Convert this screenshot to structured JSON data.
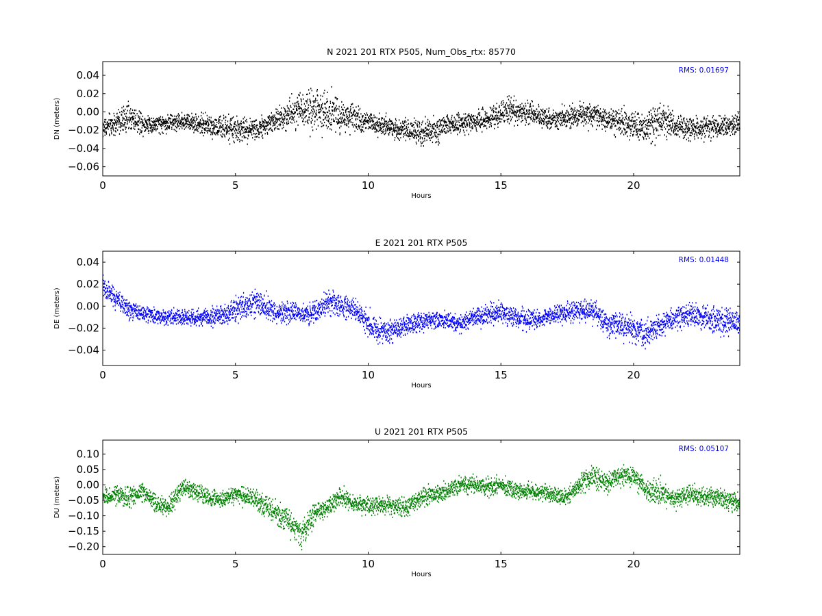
{
  "chart_data": [
    {
      "type": "scatter",
      "title": "N 2021 201 RTX  P505, Num_Obs_rtx: 85770",
      "xlabel": "Hours",
      "ylabel": "DN (meters)",
      "xlim": [
        0,
        24
      ],
      "ylim": [
        -0.07,
        0.055
      ],
      "x_ticks": [
        0,
        5,
        10,
        15,
        20
      ],
      "y_ticks": [
        -0.06,
        -0.04,
        -0.02,
        0.0,
        0.02,
        0.04
      ],
      "y_tick_labels": [
        "−0.06",
        "−0.04",
        "−0.02",
        "0.00",
        "0.02",
        "0.04"
      ],
      "color": "#000000",
      "annotation": "RMS:  0.01697",
      "annotation_color": "#0000ff",
      "grid": false,
      "series": [
        {
          "x": [
            0,
            0.5,
            1,
            1.5,
            2,
            2.5,
            3,
            3.5,
            4,
            4.5,
            5,
            5.5,
            6,
            6.5,
            7,
            7.5,
            8,
            8.5,
            9,
            9.5,
            10,
            10.5,
            11,
            11.5,
            12,
            12.5,
            13,
            13.5,
            14,
            14.5,
            15,
            15.5,
            16,
            16.5,
            17,
            17.5,
            18,
            18.5,
            19,
            19.5,
            20,
            20.5,
            21,
            21.5,
            22,
            22.5,
            23,
            23.5,
            24
          ],
          "y": [
            -0.018,
            -0.012,
            -0.006,
            -0.012,
            -0.014,
            -0.012,
            -0.01,
            -0.012,
            -0.015,
            -0.018,
            -0.02,
            -0.02,
            -0.016,
            -0.01,
            -0.002,
            0.005,
            0.0,
            0.003,
            -0.005,
            -0.008,
            -0.01,
            -0.015,
            -0.018,
            -0.02,
            -0.024,
            -0.02,
            -0.015,
            -0.012,
            -0.01,
            -0.008,
            -0.002,
            0.002,
            0.0,
            -0.004,
            -0.008,
            -0.006,
            -0.002,
            -0.004,
            -0.008,
            -0.012,
            -0.015,
            -0.018,
            -0.01,
            -0.014,
            -0.018,
            -0.018,
            -0.016,
            -0.016,
            -0.015
          ],
          "spread": [
            0.012,
            0.014,
            0.016,
            0.012,
            0.01,
            0.01,
            0.01,
            0.01,
            0.012,
            0.013,
            0.014,
            0.013,
            0.012,
            0.013,
            0.016,
            0.02,
            0.025,
            0.025,
            0.018,
            0.014,
            0.012,
            0.012,
            0.012,
            0.012,
            0.015,
            0.014,
            0.012,
            0.011,
            0.011,
            0.012,
            0.014,
            0.015,
            0.013,
            0.012,
            0.012,
            0.012,
            0.014,
            0.013,
            0.013,
            0.015,
            0.016,
            0.016,
            0.022,
            0.015,
            0.013,
            0.012,
            0.012,
            0.012,
            0.012
          ]
        }
      ]
    },
    {
      "type": "scatter",
      "title": "E 2021 201 RTX  P505",
      "xlabel": "Hours",
      "ylabel": "DE (meters)",
      "xlim": [
        0,
        24
      ],
      "ylim": [
        -0.054,
        0.05
      ],
      "x_ticks": [
        0,
        5,
        10,
        15,
        20
      ],
      "y_ticks": [
        -0.04,
        -0.02,
        0.0,
        0.02,
        0.04
      ],
      "y_tick_labels": [
        "−0.04",
        "−0.02",
        "0.00",
        "0.02",
        "0.04"
      ],
      "color": "#0000ff",
      "annotation": "RMS:  0.01448",
      "annotation_color": "#0000ff",
      "grid": false,
      "series": [
        {
          "x": [
            0,
            0.5,
            1,
            1.5,
            2,
            2.5,
            3,
            3.5,
            4,
            4.5,
            5,
            5.5,
            6,
            6.5,
            7,
            7.5,
            8,
            8.5,
            9,
            9.5,
            10,
            10.5,
            11,
            11.5,
            12,
            12.5,
            13,
            13.5,
            14,
            14.5,
            15,
            15.5,
            16,
            16.5,
            17,
            17.5,
            18,
            18.5,
            19,
            19.5,
            20,
            20.5,
            21,
            21.5,
            22,
            22.5,
            23,
            23.5,
            24
          ],
          "y": [
            0.018,
            0.006,
            -0.004,
            -0.006,
            -0.01,
            -0.01,
            -0.01,
            -0.011,
            -0.01,
            -0.008,
            -0.004,
            0.002,
            0.002,
            -0.006,
            -0.004,
            -0.008,
            -0.006,
            0.004,
            0.0,
            -0.002,
            -0.016,
            -0.024,
            -0.022,
            -0.018,
            -0.014,
            -0.012,
            -0.014,
            -0.016,
            -0.01,
            -0.008,
            -0.006,
            -0.01,
            -0.012,
            -0.012,
            -0.008,
            -0.006,
            -0.004,
            -0.006,
            -0.016,
            -0.018,
            -0.02,
            -0.024,
            -0.018,
            -0.012,
            -0.008,
            -0.01,
            -0.012,
            -0.014,
            -0.018
          ],
          "spread": [
            0.012,
            0.01,
            0.009,
            0.008,
            0.007,
            0.007,
            0.007,
            0.008,
            0.008,
            0.009,
            0.011,
            0.012,
            0.012,
            0.01,
            0.01,
            0.01,
            0.01,
            0.011,
            0.01,
            0.01,
            0.012,
            0.012,
            0.01,
            0.009,
            0.008,
            0.008,
            0.008,
            0.009,
            0.009,
            0.009,
            0.01,
            0.01,
            0.009,
            0.008,
            0.008,
            0.009,
            0.01,
            0.01,
            0.012,
            0.012,
            0.012,
            0.012,
            0.01,
            0.011,
            0.012,
            0.012,
            0.012,
            0.012,
            0.012
          ]
        }
      ]
    },
    {
      "type": "scatter",
      "title": "U 2021 201 RTX  P505",
      "xlabel": "Hours",
      "ylabel": "DU (meters)",
      "xlim": [
        0,
        24
      ],
      "ylim": [
        -0.225,
        0.145
      ],
      "x_ticks": [
        0,
        5,
        10,
        15,
        20
      ],
      "y_ticks": [
        -0.2,
        -0.15,
        -0.1,
        -0.05,
        0.0,
        0.05,
        0.1
      ],
      "y_tick_labels": [
        "−0.20",
        "−0.15",
        "−0.10",
        "−0.05",
        "0.00",
        "0.05",
        "0.10"
      ],
      "color": "#008000",
      "annotation": "RMS:  0.05107",
      "annotation_color": "#0000ff",
      "grid": false,
      "series": [
        {
          "x": [
            0,
            0.5,
            1,
            1.5,
            2,
            2.5,
            3,
            3.5,
            4,
            4.5,
            5,
            5.5,
            6,
            6.5,
            7,
            7.5,
            8,
            8.5,
            9,
            9.5,
            10,
            10.5,
            11,
            11.5,
            12,
            12.5,
            13,
            13.5,
            14,
            14.5,
            15,
            15.5,
            16,
            16.5,
            17,
            17.5,
            18,
            18.5,
            19,
            19.5,
            20,
            20.5,
            21,
            21.5,
            22,
            22.5,
            23,
            23.5,
            24
          ],
          "y": [
            -0.04,
            -0.035,
            -0.04,
            -0.02,
            -0.06,
            -0.07,
            -0.01,
            -0.02,
            -0.04,
            -0.05,
            -0.03,
            -0.04,
            -0.06,
            -0.09,
            -0.12,
            -0.16,
            -0.09,
            -0.07,
            -0.04,
            -0.06,
            -0.07,
            -0.065,
            -0.07,
            -0.07,
            -0.04,
            -0.03,
            -0.02,
            0.0,
            0.0,
            -0.01,
            0.0,
            -0.02,
            -0.02,
            -0.025,
            -0.03,
            -0.04,
            0.0,
            0.03,
            0.01,
            0.03,
            0.03,
            -0.02,
            -0.02,
            -0.05,
            -0.03,
            -0.04,
            -0.04,
            -0.05,
            -0.06
          ],
          "spread": [
            0.03,
            0.03,
            0.035,
            0.03,
            0.03,
            0.03,
            0.03,
            0.028,
            0.028,
            0.028,
            0.028,
            0.03,
            0.035,
            0.04,
            0.045,
            0.045,
            0.035,
            0.032,
            0.03,
            0.03,
            0.032,
            0.032,
            0.03,
            0.03,
            0.03,
            0.028,
            0.028,
            0.03,
            0.03,
            0.03,
            0.03,
            0.028,
            0.025,
            0.025,
            0.026,
            0.028,
            0.035,
            0.04,
            0.035,
            0.035,
            0.035,
            0.032,
            0.04,
            0.032,
            0.03,
            0.03,
            0.03,
            0.03,
            0.03
          ]
        }
      ]
    }
  ]
}
